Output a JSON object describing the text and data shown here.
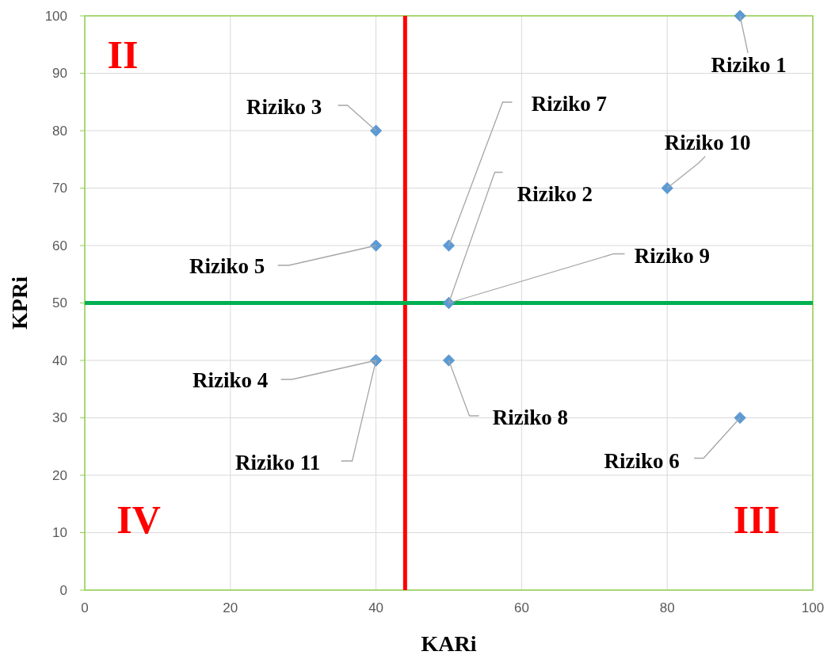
{
  "chart_data": {
    "type": "scatter",
    "xlabel": "KARi",
    "ylabel": "KPRi",
    "xlim": [
      0,
      100
    ],
    "xticks": [
      0,
      20,
      40,
      60,
      80,
      100
    ],
    "ylim": [
      0,
      100
    ],
    "yticks": [
      0,
      10,
      20,
      30,
      40,
      50,
      60,
      70,
      80,
      90,
      100
    ],
    "grid": true,
    "marker": "diamond",
    "series": [
      {
        "color": "#5b9bd5",
        "x": [
          90,
          50,
          40,
          40,
          40,
          90,
          50,
          50,
          50,
          80,
          40
        ],
        "values": [
          100,
          50,
          80,
          40,
          60,
          30,
          60,
          40,
          50,
          70,
          40
        ]
      }
    ],
    "ref_lines": [
      {
        "axis": "x",
        "value": 44,
        "color": "#ff0000"
      },
      {
        "axis": "y",
        "value": 50,
        "color": "#00b050"
      }
    ],
    "annotations": [
      {
        "text": "Riziko 1",
        "x": 90,
        "y": 100
      },
      {
        "text": "Riziko 2",
        "x": 50,
        "y": 50
      },
      {
        "text": "Riziko 3",
        "x": 40,
        "y": 80
      },
      {
        "text": "Riziko 4",
        "x": 40,
        "y": 40
      },
      {
        "text": "Riziko 5",
        "x": 40,
        "y": 60
      },
      {
        "text": "Riziko 6",
        "x": 90,
        "y": 30
      },
      {
        "text": "Riziko 7",
        "x": 50,
        "y": 60
      },
      {
        "text": "Riziko 8",
        "x": 50,
        "y": 40
      },
      {
        "text": "Riziko 9",
        "x": 50,
        "y": 50
      },
      {
        "text": "Riziko 10",
        "x": 80,
        "y": 70
      },
      {
        "text": "Riziko 11",
        "x": 40,
        "y": 40
      },
      "II",
      "IV",
      "III"
    ]
  }
}
